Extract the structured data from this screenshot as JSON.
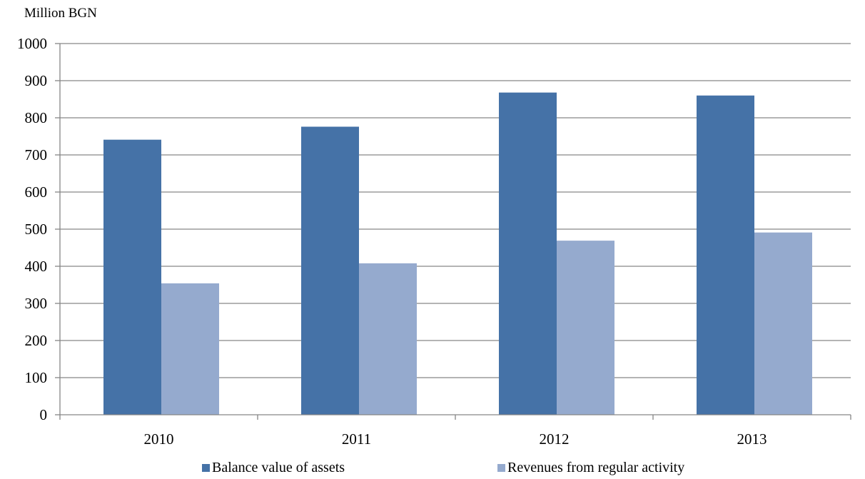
{
  "chart_data": {
    "type": "bar",
    "title": "",
    "ylabel": "Million BGN",
    "xlabel": "",
    "categories": [
      "2010",
      "2011",
      "2012",
      "2013"
    ],
    "series": [
      {
        "name": "Balance value of assets",
        "color": "#4572A7",
        "values": [
          741,
          776,
          868,
          860
        ]
      },
      {
        "name": "Revenues from regular activity",
        "color": "#95AACE",
        "values": [
          354,
          408,
          469,
          491
        ]
      }
    ],
    "ylim": [
      0,
      1000
    ],
    "yticks": [
      "0",
      "100",
      "200",
      "300",
      "400",
      "500",
      "600",
      "700",
      "800",
      "900",
      "1000"
    ],
    "grid": true,
    "legend_position": "bottom"
  }
}
